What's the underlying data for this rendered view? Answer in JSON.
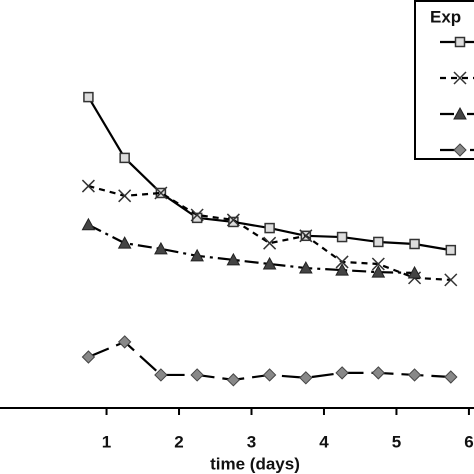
{
  "chart_data": {
    "type": "line",
    "x_label": "time (days)",
    "legend_title": "Exp",
    "x": [
      0.75,
      1.25,
      1.75,
      2.25,
      2.75,
      3.25,
      3.75,
      4.25,
      4.75,
      5.25,
      5.75
    ],
    "xlim": [
      -0.47,
      6.07
    ],
    "xticks": [
      1,
      2,
      3,
      4,
      5,
      6
    ],
    "ylim": [
      0,
      100
    ],
    "legend_position": "upper right",
    "series": [
      {
        "marker": "square",
        "dash": "solid",
        "color": "#000000",
        "values": [
          76.2,
          61.3,
          52.7,
          46.6,
          45.6,
          44.1,
          42.2,
          41.9,
          40.7,
          40.2,
          38.7
        ]
      },
      {
        "marker": "cross",
        "dash": "short",
        "color": "#000000",
        "values": [
          54.4,
          52.0,
          52.7,
          47.3,
          46.1,
          40.4,
          42.2,
          35.8,
          35.3,
          31.9,
          31.4
        ]
      },
      {
        "marker": "triangle",
        "dash": "dashdot",
        "color": "#000000",
        "values": [
          44.9,
          40.4,
          39.0,
          37.3,
          36.3,
          35.3,
          34.3,
          33.8,
          33.3,
          33.1,
          null
        ]
      },
      {
        "marker": "diamond",
        "dash": "long",
        "color": "#000000",
        "values": [
          12.5,
          16.2,
          8.1,
          8.1,
          6.9,
          8.1,
          7.4,
          8.6,
          8.6,
          8.1,
          7.6
        ]
      }
    ]
  }
}
